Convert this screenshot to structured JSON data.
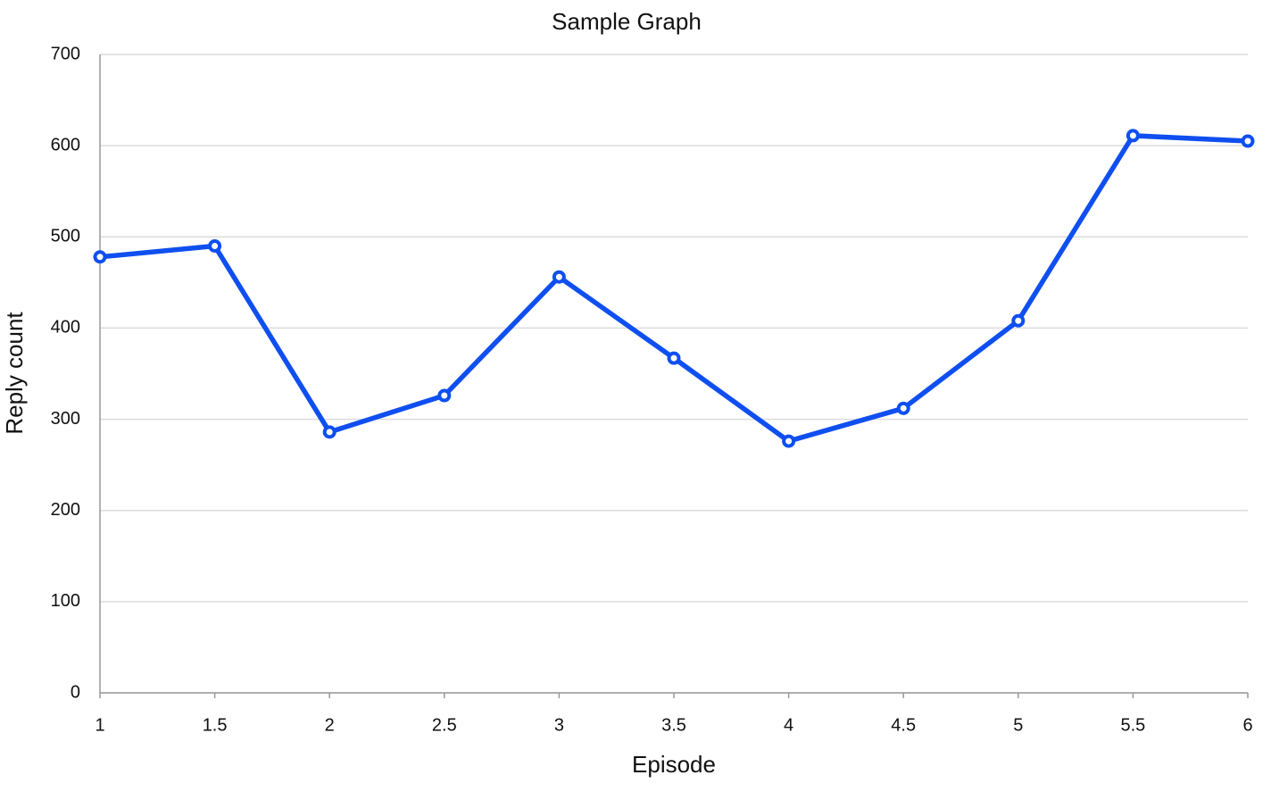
{
  "chart_data": {
    "type": "line",
    "title": "Sample Graph",
    "xlabel": "Episode",
    "ylabel": "Reply count",
    "x": [
      1,
      1.5,
      2,
      2.5,
      3,
      3.5,
      4,
      4.5,
      5,
      5.5,
      6
    ],
    "values": [
      478,
      490,
      286,
      326,
      456,
      367,
      276,
      312,
      408,
      611,
      605
    ],
    "color": "#0f4ff0",
    "xlim": [
      1,
      6
    ],
    "xticks": [
      1,
      1.5,
      2,
      2.5,
      3,
      3.5,
      4,
      4.5,
      5,
      5.5,
      6
    ],
    "ylim": [
      0,
      700
    ],
    "yticks": [
      0,
      100,
      200,
      300,
      400,
      500,
      600,
      700
    ],
    "grid": true
  }
}
